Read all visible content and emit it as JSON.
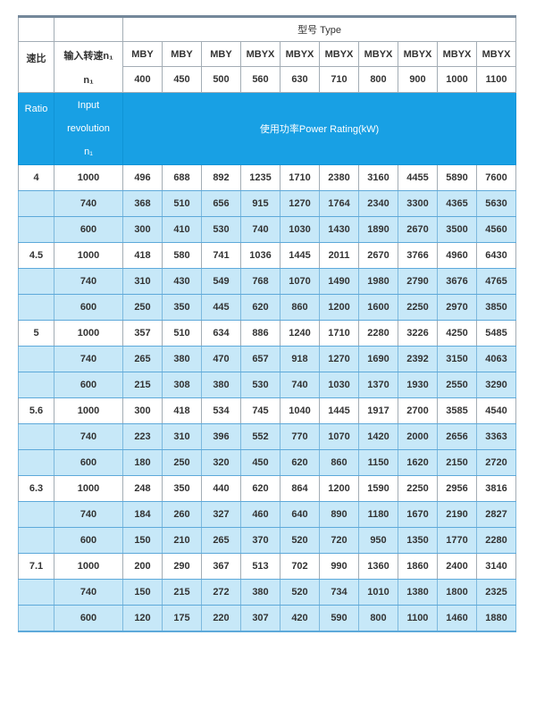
{
  "header": {
    "type_label": "型号 Type",
    "ratio_label": "速比",
    "input_speed_line1": "输入转速n₁",
    "input_speed_line2": "n₁",
    "ratio_en": "Ratio",
    "input_en_line1": "Input",
    "input_en_line2": "revolution",
    "input_en_line3": "n₁",
    "power_rating_label": "使用功率Power Rating(kW)",
    "models": [
      "MBY",
      "MBY",
      "MBY",
      "MBYX",
      "MBYX",
      "MBYX",
      "MBYX",
      "MBYX",
      "MBYX",
      "MBYX"
    ],
    "sizes": [
      "400",
      "450",
      "500",
      "560",
      "630",
      "710",
      "800",
      "900",
      "1000",
      "1100"
    ]
  },
  "chart_data": {
    "type": "table",
    "title": "型号 Type — 使用功率Power Rating(kW)",
    "column_groups": [
      "速比 Ratio",
      "输入转速n₁ Input revolution n₁",
      "MBY 400",
      "MBY 450",
      "MBY 500",
      "MBYX 560",
      "MBYX 630",
      "MBYX 710",
      "MBYX 800",
      "MBYX 900",
      "MBYX 1000",
      "MBYX 1100"
    ],
    "rows": [
      {
        "ratio": "4",
        "speed": "1000",
        "shaded": false,
        "values": [
          496,
          688,
          892,
          1235,
          1710,
          2380,
          3160,
          4455,
          5890,
          7600
        ]
      },
      {
        "ratio": "",
        "speed": "740",
        "shaded": true,
        "values": [
          368,
          510,
          656,
          915,
          1270,
          1764,
          2340,
          3300,
          4365,
          5630
        ]
      },
      {
        "ratio": "",
        "speed": "600",
        "shaded": true,
        "values": [
          300,
          410,
          530,
          740,
          1030,
          1430,
          1890,
          2670,
          3500,
          4560
        ]
      },
      {
        "ratio": "4.5",
        "speed": "1000",
        "shaded": false,
        "values": [
          418,
          580,
          741,
          1036,
          1445,
          2011,
          2670,
          3766,
          4960,
          6430
        ]
      },
      {
        "ratio": "",
        "speed": "740",
        "shaded": true,
        "values": [
          310,
          430,
          549,
          768,
          1070,
          1490,
          1980,
          2790,
          3676,
          4765
        ]
      },
      {
        "ratio": "",
        "speed": "600",
        "shaded": true,
        "values": [
          250,
          350,
          445,
          620,
          860,
          1200,
          1600,
          2250,
          2970,
          3850
        ]
      },
      {
        "ratio": "5",
        "speed": "1000",
        "shaded": false,
        "values": [
          357,
          510,
          634,
          886,
          1240,
          1710,
          2280,
          3226,
          4250,
          5485
        ]
      },
      {
        "ratio": "",
        "speed": "740",
        "shaded": true,
        "values": [
          265,
          380,
          470,
          657,
          918,
          1270,
          1690,
          2392,
          3150,
          4063
        ]
      },
      {
        "ratio": "",
        "speed": "600",
        "shaded": true,
        "values": [
          215,
          308,
          380,
          530,
          740,
          1030,
          1370,
          1930,
          2550,
          3290
        ]
      },
      {
        "ratio": "5.6",
        "speed": "1000",
        "shaded": false,
        "values": [
          300,
          418,
          534,
          745,
          1040,
          1445,
          1917,
          2700,
          3585,
          4540
        ]
      },
      {
        "ratio": "",
        "speed": "740",
        "shaded": true,
        "values": [
          223,
          310,
          396,
          552,
          770,
          1070,
          1420,
          2000,
          2656,
          3363
        ]
      },
      {
        "ratio": "",
        "speed": "600",
        "shaded": true,
        "values": [
          180,
          250,
          320,
          450,
          620,
          860,
          1150,
          1620,
          2150,
          2720
        ]
      },
      {
        "ratio": "6.3",
        "speed": "1000",
        "shaded": false,
        "values": [
          248,
          350,
          440,
          620,
          864,
          1200,
          1590,
          2250,
          2956,
          3816
        ]
      },
      {
        "ratio": "",
        "speed": "740",
        "shaded": true,
        "values": [
          184,
          260,
          327,
          460,
          640,
          890,
          1180,
          1670,
          2190,
          2827
        ]
      },
      {
        "ratio": "",
        "speed": "600",
        "shaded": true,
        "values": [
          150,
          210,
          265,
          370,
          520,
          720,
          950,
          1350,
          1770,
          2280
        ]
      },
      {
        "ratio": "7.1",
        "speed": "1000",
        "shaded": false,
        "values": [
          200,
          290,
          367,
          513,
          702,
          990,
          1360,
          1860,
          2400,
          3140
        ]
      },
      {
        "ratio": "",
        "speed": "740",
        "shaded": true,
        "values": [
          150,
          215,
          272,
          380,
          520,
          734,
          1010,
          1380,
          1800,
          2325
        ]
      },
      {
        "ratio": "",
        "speed": "600",
        "shaded": true,
        "values": [
          120,
          175,
          220,
          307,
          420,
          590,
          800,
          1100,
          1460,
          1880
        ]
      }
    ]
  },
  "colors": {
    "header_blue": "#18a0e4",
    "row_shaded": "#c7e8f8",
    "top_bar": "#74889a",
    "grid_blue": "#5da9da",
    "grid_blue_light": "#7db9de",
    "grid_gray": "#a3adb5",
    "text_dark": "#333333",
    "text_white": "#ffffff",
    "page_bg": "#ffffff"
  }
}
